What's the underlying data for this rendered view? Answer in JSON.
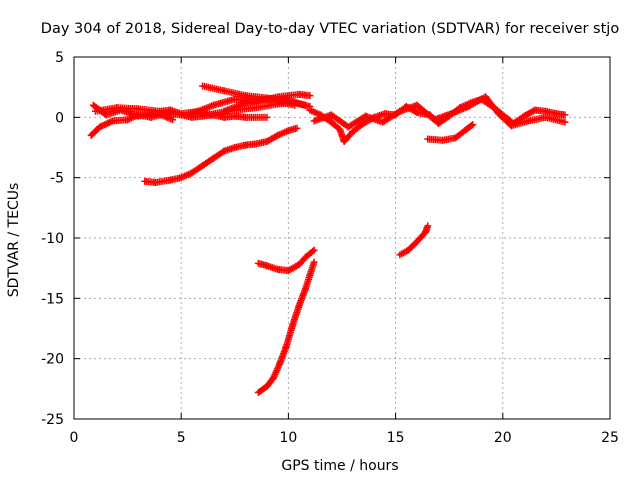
{
  "chart_data": {
    "type": "scatter",
    "title": "Day 304 of 2018, Sidereal Day-to-day VTEC variation (SDTVAR) for receiver stjo",
    "xlabel": "GPS time / hours",
    "ylabel": "SDTVAR / TECUs",
    "xlim": [
      0,
      25
    ],
    "ylim": [
      -25,
      5
    ],
    "xticks": [
      "0",
      "5",
      "10",
      "15",
      "20",
      "25"
    ],
    "yticks": [
      "5",
      "0",
      "-5",
      "-10",
      "-15",
      "-20",
      "-25"
    ],
    "grid": true,
    "series_color": "#ff0000",
    "marker": "plus",
    "tracks": [
      [
        [
          0.8,
          -1.5
        ],
        [
          1.2,
          -0.8
        ],
        [
          1.8,
          -0.3
        ],
        [
          2.5,
          -0.2
        ],
        [
          3.0,
          0.2
        ],
        [
          3.6,
          0.0
        ],
        [
          4.2,
          0.3
        ],
        [
          5.0,
          0.2
        ],
        [
          5.5,
          0.0
        ],
        [
          6.0,
          0.1
        ],
        [
          6.5,
          0.2
        ],
        [
          7.0,
          0.0
        ],
        [
          7.5,
          0.1
        ],
        [
          8.0,
          0.0
        ],
        [
          9.0,
          0.0
        ]
      ],
      [
        [
          1.0,
          0.5
        ],
        [
          2.0,
          0.8
        ],
        [
          3.0,
          0.7
        ],
        [
          4.0,
          0.5
        ],
        [
          4.5,
          0.6
        ],
        [
          5.0,
          0.3
        ],
        [
          5.8,
          0.5
        ],
        [
          6.5,
          0.2
        ]
      ],
      [
        [
          0.9,
          1.0
        ],
        [
          1.5,
          0.2
        ],
        [
          2.2,
          0.6
        ],
        [
          3.0,
          0.1
        ],
        [
          3.8,
          0.4
        ],
        [
          4.6,
          -0.2
        ]
      ],
      [
        [
          6.0,
          2.6
        ],
        [
          7.0,
          2.2
        ],
        [
          8.0,
          1.8
        ],
        [
          9.0,
          1.6
        ],
        [
          10.0,
          1.4
        ],
        [
          10.8,
          1.0
        ]
      ],
      [
        [
          5.5,
          0.3
        ],
        [
          6.5,
          1.0
        ],
        [
          7.5,
          1.5
        ],
        [
          8.5,
          1.3
        ],
        [
          9.5,
          1.7
        ],
        [
          10.5,
          1.9
        ],
        [
          11.0,
          1.8
        ]
      ],
      [
        [
          6.5,
          0.3
        ],
        [
          7.5,
          0.6
        ],
        [
          8.5,
          0.8
        ],
        [
          9.5,
          1.1
        ],
        [
          10.3,
          1.2
        ],
        [
          11.0,
          0.9
        ]
      ],
      [
        [
          7.0,
          0.5
        ],
        [
          8.0,
          1.2
        ],
        [
          8.8,
          1.5
        ],
        [
          9.5,
          1.3
        ],
        [
          10.3,
          1.0
        ]
      ],
      [
        [
          3.3,
          -5.3
        ],
        [
          3.8,
          -5.4
        ],
        [
          4.5,
          -5.2
        ],
        [
          5.0,
          -5.0
        ],
        [
          5.5,
          -4.6
        ],
        [
          6.0,
          -4.0
        ],
        [
          6.5,
          -3.4
        ],
        [
          7.0,
          -2.8
        ],
        [
          7.5,
          -2.5
        ],
        [
          8.0,
          -2.3
        ],
        [
          8.5,
          -2.2
        ],
        [
          9.0,
          -2.0
        ],
        [
          9.5,
          -1.5
        ],
        [
          10.0,
          -1.1
        ],
        [
          10.4,
          -0.9
        ]
      ],
      [
        [
          11.0,
          0.6
        ],
        [
          11.5,
          0.2
        ],
        [
          12.0,
          -0.4
        ],
        [
          12.4,
          -1.0
        ],
        [
          12.6,
          -2.0
        ],
        [
          13.0,
          -1.2
        ],
        [
          13.5,
          -0.5
        ],
        [
          14.0,
          0.0
        ],
        [
          14.5,
          0.3
        ],
        [
          15.0,
          0.2
        ],
        [
          15.5,
          0.9
        ],
        [
          16.0,
          0.4
        ],
        [
          16.6,
          0.2
        ],
        [
          17.0,
          -0.5
        ],
        [
          17.5,
          0.1
        ],
        [
          18.0,
          0.8
        ],
        [
          18.5,
          1.2
        ],
        [
          19.0,
          1.5
        ],
        [
          19.6,
          0.8
        ],
        [
          20.0,
          0.2
        ],
        [
          20.5,
          -0.5
        ],
        [
          21.0,
          0.1
        ],
        [
          21.5,
          0.6
        ],
        [
          22.0,
          0.5
        ],
        [
          22.5,
          0.3
        ],
        [
          22.9,
          0.2
        ]
      ],
      [
        [
          11.2,
          -0.3
        ],
        [
          12.0,
          0.2
        ],
        [
          12.8,
          -0.8
        ],
        [
          13.6,
          0.1
        ],
        [
          14.4,
          -0.4
        ],
        [
          15.2,
          0.5
        ],
        [
          16.0,
          1.0
        ],
        [
          16.8,
          -0.2
        ],
        [
          17.6,
          0.3
        ],
        [
          18.4,
          0.9
        ],
        [
          19.2,
          1.7
        ],
        [
          19.8,
          0.3
        ],
        [
          20.4,
          -0.7
        ],
        [
          21.2,
          -0.3
        ],
        [
          22.0,
          0.0
        ],
        [
          22.9,
          -0.4
        ]
      ],
      [
        [
          16.5,
          -1.8
        ],
        [
          17.2,
          -1.9
        ],
        [
          17.8,
          -1.7
        ],
        [
          18.3,
          -1.0
        ],
        [
          18.6,
          -0.6
        ]
      ],
      [
        [
          8.6,
          -12.1
        ],
        [
          9.0,
          -12.3
        ],
        [
          9.5,
          -12.6
        ],
        [
          10.0,
          -12.7
        ],
        [
          10.5,
          -12.2
        ],
        [
          10.8,
          -11.6
        ],
        [
          11.2,
          -11.0
        ]
      ],
      [
        [
          8.6,
          -22.8
        ],
        [
          9.0,
          -22.3
        ],
        [
          9.3,
          -21.6
        ],
        [
          9.6,
          -20.4
        ],
        [
          9.9,
          -19.0
        ],
        [
          10.2,
          -17.2
        ],
        [
          10.5,
          -15.6
        ],
        [
          10.8,
          -14.2
        ],
        [
          11.0,
          -13.1
        ],
        [
          11.2,
          -12.0
        ]
      ],
      [
        [
          15.2,
          -11.4
        ],
        [
          15.6,
          -11.0
        ],
        [
          16.0,
          -10.3
        ],
        [
          16.4,
          -9.5
        ],
        [
          16.5,
          -9.0
        ]
      ]
    ]
  }
}
